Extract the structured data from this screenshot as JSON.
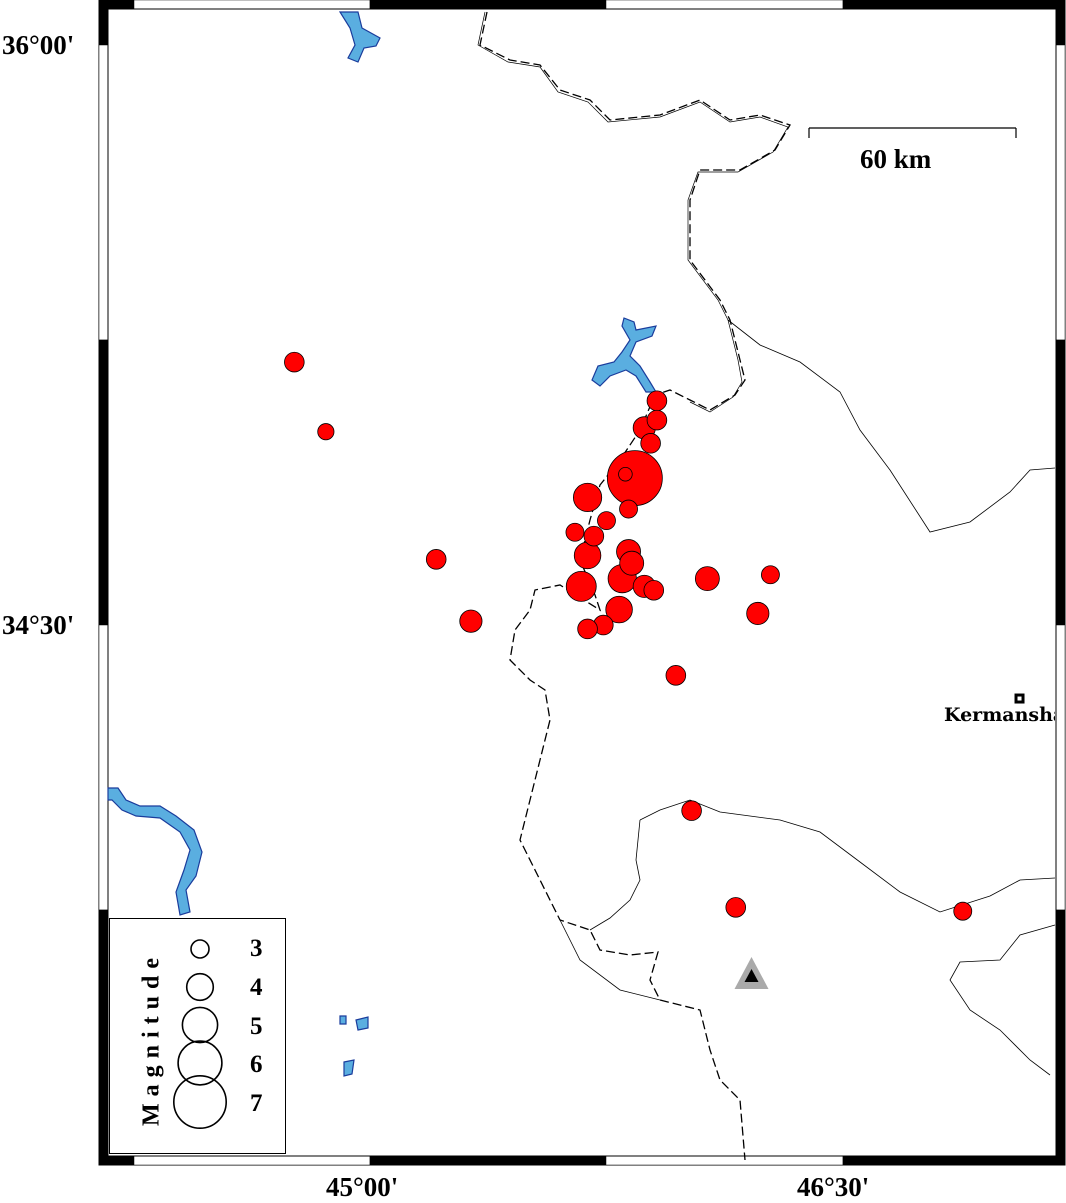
{
  "map": {
    "axes": {
      "lat_labels": [
        {
          "value": 36.0,
          "text": "36°00'"
        },
        {
          "value": 34.5,
          "text": "34°30'"
        }
      ],
      "lon_labels": [
        {
          "value": 45.0,
          "text": "45°00'"
        },
        {
          "value": 46.5,
          "text": "46°30'"
        }
      ]
    },
    "scale_bar": {
      "label": "60 km"
    },
    "city": {
      "name": "Kermanshah",
      "lon": 47.06,
      "lat": 34.31
    },
    "station": {
      "lon": 46.21,
      "lat": 33.59
    },
    "colors": {
      "event": "#ff0000",
      "water": "#5aaee0",
      "water_edge": "#1a3c9c",
      "station_outer": "#aaaaaa",
      "station_inner": "#000000"
    },
    "legend": {
      "title": "Magnitude",
      "items": [
        {
          "mag": 3,
          "label": "3"
        },
        {
          "mag": 4,
          "label": "4"
        },
        {
          "mag": 5,
          "label": "5"
        },
        {
          "mag": 6,
          "label": "6"
        },
        {
          "mag": 7,
          "label": "7"
        }
      ]
    },
    "events": [
      {
        "lon": 44.76,
        "lat": 35.18,
        "mag": 3.2
      },
      {
        "lon": 44.86,
        "lat": 35.0,
        "mag": 2.8
      },
      {
        "lon": 45.21,
        "lat": 34.67,
        "mag": 3.2
      },
      {
        "lon": 45.32,
        "lat": 34.51,
        "mag": 3.5
      },
      {
        "lon": 45.91,
        "lat": 35.08,
        "mag": 3.2
      },
      {
        "lon": 45.91,
        "lat": 35.03,
        "mag": 3.2
      },
      {
        "lon": 45.87,
        "lat": 35.01,
        "mag": 3.5
      },
      {
        "lon": 45.89,
        "lat": 34.97,
        "mag": 3.2
      },
      {
        "lon": 45.84,
        "lat": 34.88,
        "mag": 7.3
      },
      {
        "lon": 45.81,
        "lat": 34.89,
        "mag": 2.5
      },
      {
        "lon": 45.69,
        "lat": 34.83,
        "mag": 4.2
      },
      {
        "lon": 45.82,
        "lat": 34.8,
        "mag": 3.0
      },
      {
        "lon": 45.75,
        "lat": 34.77,
        "mag": 3.0
      },
      {
        "lon": 45.65,
        "lat": 34.74,
        "mag": 3.0
      },
      {
        "lon": 45.71,
        "lat": 34.73,
        "mag": 3.2
      },
      {
        "lon": 45.69,
        "lat": 34.68,
        "mag": 4.0
      },
      {
        "lon": 45.82,
        "lat": 34.69,
        "mag": 3.7
      },
      {
        "lon": 45.83,
        "lat": 34.66,
        "mag": 3.7
      },
      {
        "lon": 45.67,
        "lat": 34.6,
        "mag": 4.4
      },
      {
        "lon": 45.8,
        "lat": 34.62,
        "mag": 4.2
      },
      {
        "lon": 45.87,
        "lat": 34.6,
        "mag": 3.5
      },
      {
        "lon": 45.9,
        "lat": 34.59,
        "mag": 3.2
      },
      {
        "lon": 45.79,
        "lat": 34.54,
        "mag": 4.0
      },
      {
        "lon": 45.74,
        "lat": 34.5,
        "mag": 3.2
      },
      {
        "lon": 45.69,
        "lat": 34.49,
        "mag": 3.2
      },
      {
        "lon": 46.07,
        "lat": 34.62,
        "mag": 3.7
      },
      {
        "lon": 46.27,
        "lat": 34.63,
        "mag": 3.0
      },
      {
        "lon": 46.23,
        "lat": 34.53,
        "mag": 3.5
      },
      {
        "lon": 45.97,
        "lat": 34.37,
        "mag": 3.2
      },
      {
        "lon": 46.02,
        "lat": 34.02,
        "mag": 3.2
      },
      {
        "lon": 46.16,
        "lat": 33.77,
        "mag": 3.2
      },
      {
        "lon": 46.88,
        "lat": 33.76,
        "mag": 3.0
      }
    ]
  }
}
